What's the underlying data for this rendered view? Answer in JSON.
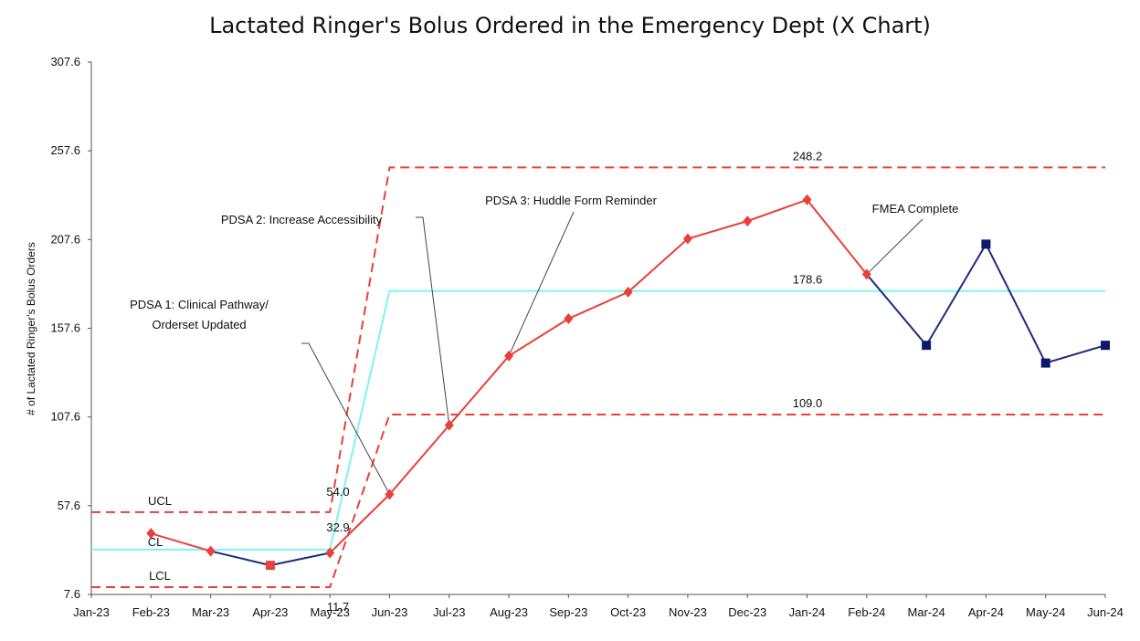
{
  "chart_data": {
    "type": "line",
    "title": "Lactated Ringer's Bolus Ordered in the Emergency Dept (X Chart)",
    "xlabel": "",
    "ylabel": "# of Lactated Ringer's Bolus Orders",
    "ylim": [
      7.6,
      307.6
    ],
    "y_ticks": [
      "7.6",
      "57.6",
      "107.6",
      "157.6",
      "207.6",
      "257.6",
      "307.6"
    ],
    "grid": false,
    "categories": [
      "Jan-23",
      "Feb-23",
      "Mar-23",
      "Apr-23",
      "May-23",
      "Jun-23",
      "Jul-23",
      "Aug-23",
      "Sep-23",
      "Oct-23",
      "Nov-23",
      "Dec-23",
      "Jan-24",
      "Feb-24",
      "Mar-24",
      "Apr-24",
      "May-24",
      "Jun-24"
    ],
    "series": [
      {
        "values": [
          null,
          42,
          32,
          24,
          31,
          64,
          103,
          142,
          163,
          178,
          208,
          218,
          230,
          188,
          148,
          205,
          138,
          148
        ]
      }
    ],
    "highlight_point": {
      "category": "Apr-23",
      "value": 24
    },
    "limits": {
      "ucl": [
        {
          "from": 0,
          "to": 4,
          "value": 54.0
        },
        {
          "from": 5,
          "to": 17,
          "value": 248.2
        }
      ],
      "cl": [
        {
          "from": 0,
          "to": 4,
          "value": 32.9
        },
        {
          "from": 5,
          "to": 17,
          "value": 178.6
        }
      ],
      "lcl": [
        {
          "from": 0,
          "to": 4,
          "value": 11.7
        },
        {
          "from": 5,
          "to": 17,
          "value": 109.0
        }
      ]
    },
    "line_labels": {
      "ucl": "UCL",
      "cl": "CL",
      "lcl": "LCL",
      "ucl_phase1": "54.0",
      "cl_phase1": "32.9",
      "lcl_phase1": "11.7",
      "ucl_phase2": "248.2",
      "cl_phase2": "178.6",
      "lcl_phase2": "109.0"
    },
    "annotations": [
      {
        "id": "pdsa1",
        "lines": [
          "PDSA 1: Clinical Pathway/",
          "Orderset Updated"
        ],
        "target_index": 5
      },
      {
        "id": "pdsa2",
        "lines": [
          "PDSA 2: Increase Accessibility"
        ],
        "target_index": 6
      },
      {
        "id": "pdsa3",
        "lines": [
          "PDSA 3: Huddle Form Reminder"
        ],
        "target_index": 7
      },
      {
        "id": "fmea",
        "lines": [
          "FMEA Complete"
        ],
        "target_index": 13
      }
    ],
    "colors": {
      "phase_line": "#e8403a",
      "phase_marker": "#e8403a",
      "followup_line": "#1f2a7a",
      "followup_marker": "#0c1a6e",
      "limits": "#e8403a",
      "center": "#7ff3f6",
      "axis": "#555555",
      "leader": "#444444"
    }
  }
}
